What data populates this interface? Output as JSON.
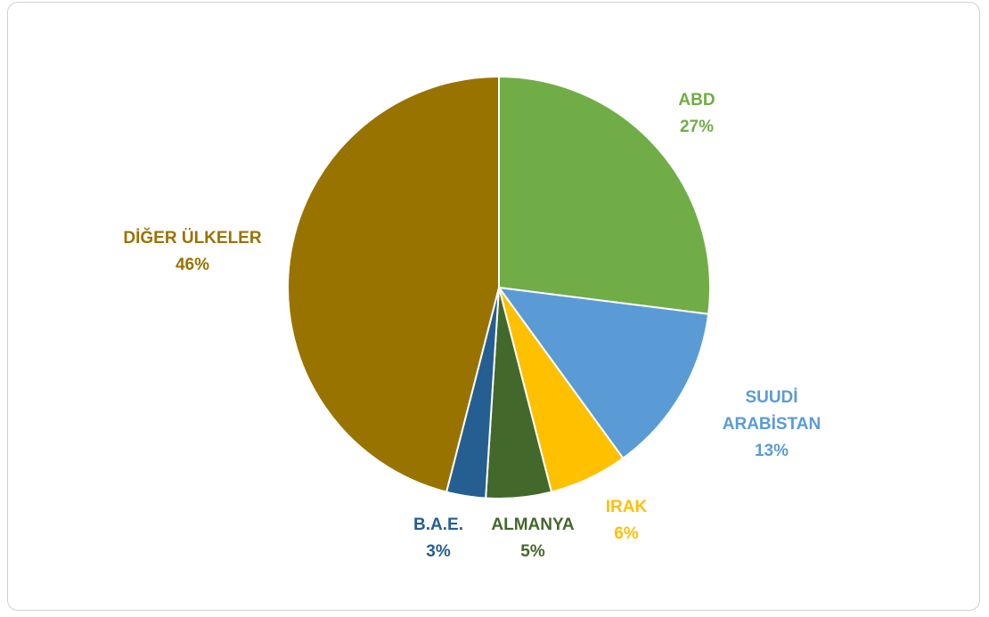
{
  "chart_data": {
    "type": "pie",
    "categories": [
      "ABD",
      "SUUDİ ARABİSTAN",
      "IRAK",
      "ALMANYA",
      "B.A.E.",
      "DİĞER ÜLKELER"
    ],
    "values": [
      27,
      13,
      6,
      5,
      3,
      46
    ],
    "value_labels": [
      "27%",
      "13%",
      "6%",
      "5%",
      "3%",
      "46%"
    ],
    "colors": [
      "#70ad47",
      "#5b9bd5",
      "#ffc000",
      "#43682b",
      "#255e91",
      "#997300"
    ]
  }
}
